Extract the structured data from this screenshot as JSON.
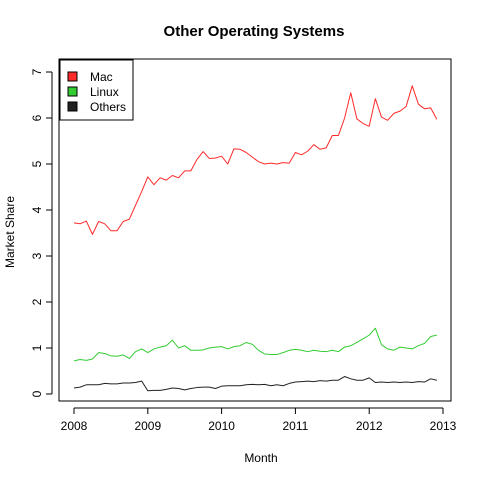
{
  "chart_data": {
    "type": "line",
    "title": "Other Operating Systems",
    "xlabel": "Month",
    "ylabel": "Market Share",
    "xlim": [
      2008,
      2013
    ],
    "ylim": [
      0,
      7
    ],
    "x_ticks": [
      2008,
      2009,
      2010,
      2011,
      2012,
      2013
    ],
    "y_ticks": [
      0,
      1,
      2,
      3,
      4,
      5,
      6,
      7
    ],
    "x_tick_labels": [
      "2008",
      "2009",
      "2010",
      "2011",
      "2012",
      "2013"
    ],
    "y_tick_labels": [
      "0",
      "1",
      "2",
      "3",
      "4",
      "5",
      "6",
      "7"
    ],
    "grid": false,
    "legend_position": "top-left",
    "x": [
      2008.0,
      2008.083,
      2008.167,
      2008.25,
      2008.333,
      2008.417,
      2008.5,
      2008.583,
      2008.667,
      2008.75,
      2008.833,
      2008.917,
      2009.0,
      2009.083,
      2009.167,
      2009.25,
      2009.333,
      2009.417,
      2009.5,
      2009.583,
      2009.667,
      2009.75,
      2009.833,
      2009.917,
      2010.0,
      2010.083,
      2010.167,
      2010.25,
      2010.333,
      2010.417,
      2010.5,
      2010.583,
      2010.667,
      2010.75,
      2010.833,
      2010.917,
      2011.0,
      2011.083,
      2011.167,
      2011.25,
      2011.333,
      2011.417,
      2011.5,
      2011.583,
      2011.667,
      2011.75,
      2011.833,
      2011.917,
      2012.0,
      2012.083,
      2012.167,
      2012.25,
      2012.333,
      2012.417,
      2012.5,
      2012.583,
      2012.667,
      2012.75,
      2012.833,
      2012.917
    ],
    "series": [
      {
        "name": "Mac",
        "color": "#ff2a2a",
        "values": [
          3.72,
          3.7,
          3.76,
          3.47,
          3.75,
          3.7,
          3.55,
          3.55,
          3.75,
          3.8,
          4.1,
          4.4,
          4.72,
          4.55,
          4.7,
          4.65,
          4.75,
          4.7,
          4.85,
          4.85,
          5.1,
          5.27,
          5.12,
          5.13,
          5.17,
          5.0,
          5.33,
          5.32,
          5.25,
          5.15,
          5.05,
          5.0,
          5.02,
          5.0,
          5.03,
          5.02,
          5.25,
          5.2,
          5.28,
          5.42,
          5.32,
          5.35,
          5.62,
          5.62,
          6.0,
          6.55,
          5.98,
          5.88,
          5.82,
          6.42,
          6.02,
          5.95,
          6.1,
          6.15,
          6.25,
          6.7,
          6.3,
          6.2,
          6.22,
          5.97
        ]
      },
      {
        "name": "Linux",
        "color": "#33cc33",
        "values": [
          0.72,
          0.75,
          0.73,
          0.76,
          0.9,
          0.88,
          0.83,
          0.82,
          0.85,
          0.77,
          0.92,
          0.98,
          0.9,
          0.98,
          1.02,
          1.05,
          1.17,
          1.0,
          1.05,
          0.95,
          0.95,
          0.96,
          1.0,
          1.02,
          1.03,
          0.98,
          1.03,
          1.05,
          1.12,
          1.08,
          0.95,
          0.87,
          0.86,
          0.86,
          0.9,
          0.95,
          0.97,
          0.95,
          0.92,
          0.95,
          0.93,
          0.92,
          0.95,
          0.92,
          1.02,
          1.05,
          1.12,
          1.2,
          1.28,
          1.43,
          1.07,
          0.98,
          0.95,
          1.02,
          1.0,
          0.98,
          1.05,
          1.1,
          1.25,
          1.28
        ]
      },
      {
        "name": "Others",
        "color": "#222222",
        "values": [
          0.13,
          0.15,
          0.2,
          0.2,
          0.2,
          0.23,
          0.22,
          0.22,
          0.24,
          0.24,
          0.25,
          0.28,
          0.07,
          0.08,
          0.08,
          0.1,
          0.13,
          0.12,
          0.09,
          0.12,
          0.14,
          0.15,
          0.15,
          0.12,
          0.17,
          0.18,
          0.18,
          0.18,
          0.2,
          0.21,
          0.2,
          0.21,
          0.18,
          0.2,
          0.18,
          0.23,
          0.26,
          0.27,
          0.28,
          0.27,
          0.29,
          0.28,
          0.3,
          0.3,
          0.38,
          0.33,
          0.3,
          0.3,
          0.35,
          0.25,
          0.26,
          0.25,
          0.26,
          0.25,
          0.26,
          0.25,
          0.27,
          0.26,
          0.33,
          0.3
        ]
      }
    ]
  }
}
